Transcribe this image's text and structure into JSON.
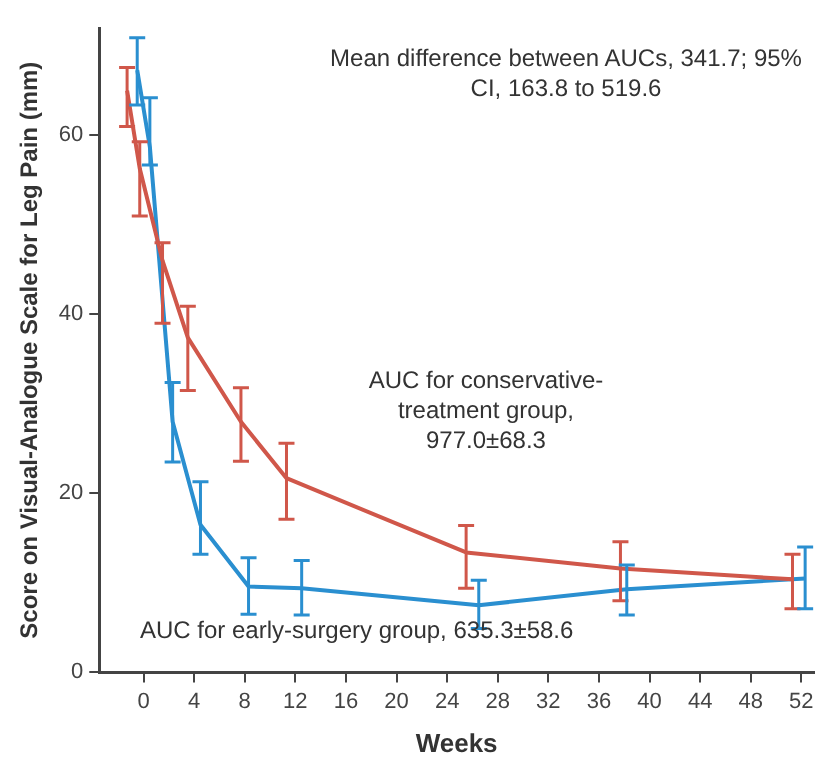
{
  "chart_data": {
    "type": "line",
    "xlabel": "Weeks",
    "ylabel": "Score on Visual-Analogue Scale for Leg Pain (mm)",
    "annotations": [
      "Mean difference between AUCs, 341.7; 95% CI, 163.8 to 519.6",
      "AUC for conservative-treatment group, 977.0±68.3",
      "AUC for early-surgery group, 635.3±58.6"
    ],
    "xlim": [
      -3.5,
      53
    ],
    "xticks": [
      0,
      4,
      8,
      12,
      16,
      20,
      24,
      28,
      32,
      36,
      40,
      44,
      48,
      52
    ],
    "ylim": [
      0,
      72
    ],
    "yticks": [
      0,
      20,
      40,
      60
    ],
    "grid": false,
    "legend": false,
    "marker": "none",
    "line_style": "solid",
    "series": [
      {
        "color": "#d0574a",
        "x": [
          -1.3,
          -0.3,
          1.5,
          3.5,
          7.7,
          11.3,
          25.5,
          37.7,
          51.3
        ],
        "values": [
          65,
          56.3,
          46,
          37.4,
          28,
          21.7,
          13.4,
          11.6,
          10.4
        ],
        "errors": [
          [
            61,
            67.6
          ],
          [
            51,
            59.3
          ],
          [
            39,
            48
          ],
          [
            31.5,
            40.9
          ],
          [
            23.6,
            31.8
          ],
          [
            17.1,
            25.6
          ],
          [
            9.4,
            16.4
          ],
          [
            8,
            14.6
          ],
          [
            7.1,
            13.2
          ]
        ]
      },
      {
        "color": "#2a8fd0",
        "x": [
          -0.5,
          0.5,
          2.3,
          4.5,
          8.3,
          12.5,
          26.5,
          38.2,
          52.3
        ],
        "values": [
          67.3,
          58.7,
          28,
          16.5,
          9.6,
          9.4,
          7.5,
          9.3,
          10.5
        ],
        "errors": [
          [
            63.4,
            70.9
          ],
          [
            56.7,
            64.2
          ],
          [
            23.5,
            32.4
          ],
          [
            13.2,
            21.3
          ],
          [
            6.5,
            12.8
          ],
          [
            6.4,
            12.5
          ],
          [
            4.9,
            10.3
          ],
          [
            6.4,
            12
          ],
          [
            7.1,
            14
          ]
        ]
      }
    ]
  }
}
